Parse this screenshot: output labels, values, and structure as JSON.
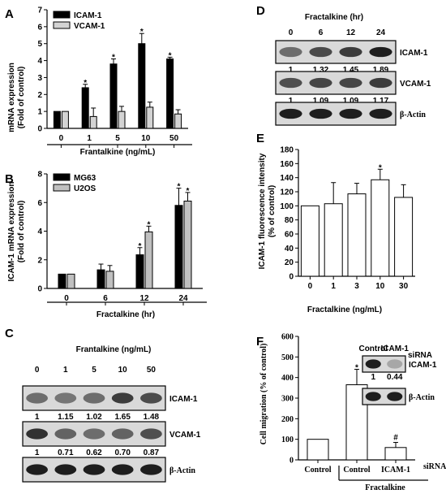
{
  "panels": {
    "A": {
      "label": "A",
      "xlabel": "Frantalkine (ng/mL)",
      "ylabel": [
        "mRNA expression",
        "(Fold of control)"
      ]
    },
    "B": {
      "label": "B",
      "xlabel": "Fractalkine (hr)",
      "ylabel": [
        "ICAM-1 mRNA expression",
        "(Fold of control)"
      ]
    },
    "C": {
      "label": "C",
      "header": "Frantalkine (ng/mL)",
      "lanes": [
        "0",
        "1",
        "5",
        "10",
        "50"
      ],
      "blots": [
        {
          "name": "ICAM-1",
          "values": [
            "1",
            "1.15",
            "1.02",
            "1.65",
            "1.48"
          ],
          "intensity": [
            0.55,
            0.5,
            0.55,
            0.8,
            0.72
          ]
        },
        {
          "name": "VCAM-1",
          "values": [
            "1",
            "0.71",
            "0.62",
            "0.70",
            "0.87"
          ],
          "intensity": [
            0.85,
            0.6,
            0.55,
            0.6,
            0.7
          ]
        },
        {
          "name": "β-Actin",
          "values": [],
          "intensity": [
            0.95,
            0.95,
            0.95,
            0.95,
            0.95
          ]
        }
      ]
    },
    "D": {
      "label": "D",
      "header": "Fractalkine (hr)",
      "lanes": [
        "0",
        "6",
        "12",
        "24"
      ],
      "blots": [
        {
          "name": "ICAM-1",
          "values": [
            "1",
            "1.32",
            "1.45",
            "1.89"
          ],
          "intensity": [
            0.55,
            0.72,
            0.8,
            0.95
          ]
        },
        {
          "name": "VCAM-1",
          "values": [
            "1",
            "1.09",
            "1.09",
            "1.17"
          ],
          "intensity": [
            0.7,
            0.75,
            0.75,
            0.8
          ]
        },
        {
          "name": "β-Actin",
          "values": [],
          "intensity": [
            0.95,
            0.95,
            0.95,
            0.95
          ]
        }
      ]
    },
    "E": {
      "label": "E",
      "xlabel": "Fractalkine (ng/mL)",
      "ylabel": [
        "ICAM-1 fluorescence intensity",
        "(% of control)"
      ]
    },
    "F": {
      "label": "F",
      "ylabel": "Cell migration (% of control)",
      "group_label": "Fractalkine",
      "sirna_label": "siRNA",
      "inset": {
        "lanes": [
          "Control",
          "ICAM-1"
        ],
        "sirna": "siRNA",
        "blots": [
          {
            "name": "ICAM-1",
            "values": [
              "1",
              "0.44"
            ],
            "intensity": [
              0.95,
              0.25
            ]
          },
          {
            "name": "β-Actin",
            "values": [],
            "intensity": [
              0.95,
              0.95
            ]
          }
        ]
      }
    }
  },
  "chart_data": [
    {
      "panel": "A",
      "type": "bar",
      "categories": [
        "0",
        "1",
        "5",
        "10",
        "50"
      ],
      "series": [
        {
          "name": "ICAM-1",
          "color": "#000000",
          "values": [
            1,
            2.4,
            3.8,
            5.0,
            4.1
          ],
          "errors": [
            0,
            0.2,
            0.3,
            0.6,
            0.1
          ],
          "significant": [
            false,
            true,
            true,
            true,
            true
          ]
        },
        {
          "name": "VCAM-1",
          "color": "#d3d3d3",
          "values": [
            1,
            0.7,
            1.0,
            1.25,
            0.85
          ],
          "errors": [
            0,
            0.5,
            0.3,
            0.3,
            0.25
          ],
          "significant": [
            false,
            false,
            false,
            false,
            false
          ]
        }
      ],
      "ylim": [
        0,
        7
      ],
      "yticks": [
        0,
        1,
        2,
        3,
        4,
        5,
        6,
        7
      ],
      "xlabel": "Frantalkine (ng/mL)",
      "ylabel": "mRNA expression (Fold of control)",
      "legend": "top-left"
    },
    {
      "panel": "B",
      "type": "bar",
      "categories": [
        "0",
        "6",
        "12",
        "24"
      ],
      "series": [
        {
          "name": "MG63",
          "color": "#000000",
          "values": [
            1,
            1.3,
            2.35,
            5.8
          ],
          "errors": [
            0,
            0.4,
            0.5,
            1.2
          ],
          "significant": [
            false,
            false,
            true,
            true
          ]
        },
        {
          "name": "U2OS",
          "color": "#c0c0c0",
          "values": [
            1,
            1.2,
            3.95,
            6.1
          ],
          "errors": [
            0,
            0.4,
            0.4,
            0.6
          ],
          "significant": [
            false,
            false,
            true,
            true
          ]
        }
      ],
      "ylim": [
        0,
        8
      ],
      "yticks": [
        0,
        2,
        4,
        6,
        8
      ],
      "xlabel": "Fractalkine (hr)",
      "ylabel": "ICAM-1 mRNA expression (Fold of control)",
      "legend": "top-left"
    },
    {
      "panel": "E",
      "type": "bar",
      "categories": [
        "0",
        "1",
        "3",
        "10",
        "30"
      ],
      "series": [
        {
          "name": "",
          "color": "#ffffff",
          "values": [
            100,
            103,
            117,
            137,
            112
          ],
          "errors": [
            0,
            30,
            15,
            15,
            18
          ],
          "significant": [
            false,
            false,
            false,
            true,
            false
          ]
        }
      ],
      "ylim": [
        0,
        180
      ],
      "yticks": [
        0,
        20,
        40,
        60,
        80,
        100,
        120,
        140,
        160,
        180
      ],
      "xlabel": "Fractalkine (ng/mL)",
      "ylabel": "ICAM-1 fluorescence intensity (% of control)"
    },
    {
      "panel": "F",
      "type": "bar",
      "categories": [
        "Control",
        "Control",
        "ICAM-1"
      ],
      "series": [
        {
          "name": "",
          "color": "#ffffff",
          "values": [
            100,
            365,
            60
          ],
          "errors": [
            0,
            75,
            25
          ],
          "marks": [
            "",
            "*",
            "#"
          ]
        }
      ],
      "ylim": [
        0,
        600
      ],
      "yticks": [
        0,
        100,
        200,
        300,
        400,
        500,
        600
      ],
      "ylabel": "Cell migration (% of control)"
    }
  ]
}
